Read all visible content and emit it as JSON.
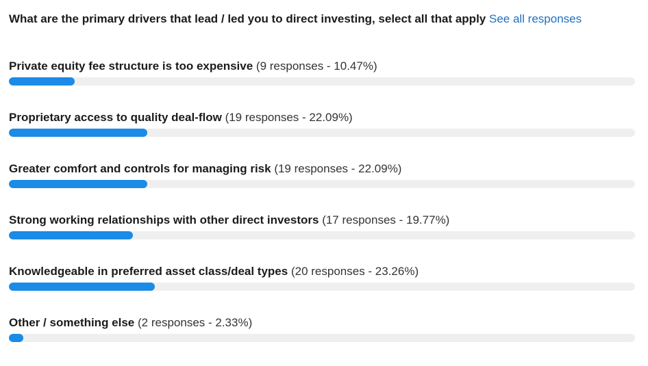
{
  "question": "What are the primary drivers that lead / led you to direct investing, select all that apply",
  "link": "See all responses",
  "options": [
    {
      "label": "Private equity fee structure is too expensive",
      "detail": "(9 responses - 10.47%)",
      "percent": 10.47
    },
    {
      "label": "Proprietary access to quality deal-flow",
      "detail": "(19 responses - 22.09%)",
      "percent": 22.09
    },
    {
      "label": "Greater comfort and controls for managing risk",
      "detail": "(19 responses - 22.09%)",
      "percent": 22.09
    },
    {
      "label": "Strong working relationships with other direct investors",
      "detail": "(17 responses - 19.77%)",
      "percent": 19.77
    },
    {
      "label": "Knowledgeable in preferred asset class/deal types",
      "detail": "(20 responses - 23.26%)",
      "percent": 23.26
    },
    {
      "label": "Other / something else",
      "detail": "(2 responses - 2.33%)",
      "percent": 2.33
    }
  ]
}
